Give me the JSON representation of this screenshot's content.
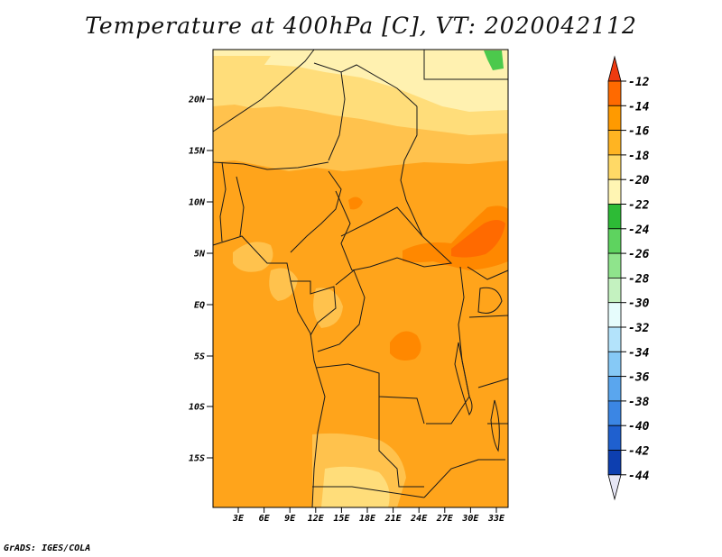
{
  "title": "Temperature at 400hPa [C], VT: 2020042112",
  "credit": "GrADS: IGES/COLA",
  "map": {
    "lat_labels": [
      "20N",
      "15N",
      "10N",
      "5N",
      "EQ",
      "5S",
      "10S",
      "15S"
    ],
    "lon_labels": [
      "3E",
      "6E",
      "9E",
      "12E",
      "15E",
      "18E",
      "21E",
      "24E",
      "27E",
      "30E",
      "33E"
    ]
  },
  "colorbar": {
    "labels": [
      "-12",
      "-14",
      "-16",
      "-18",
      "-20",
      "-22",
      "-24",
      "-26",
      "-28",
      "-30",
      "-32",
      "-34",
      "-36",
      "-38",
      "-40",
      "-42",
      "-44"
    ],
    "colors": [
      "#ee3a10",
      "#ff6a00",
      "#ff9a00",
      "#ffb422",
      "#ffd966",
      "#fff5b3",
      "#2dbb36",
      "#5ed35f",
      "#8fe48c",
      "#c4f2c0",
      "#e6fcfc",
      "#b3e3fb",
      "#86c9f6",
      "#5aa6ee",
      "#3b86e4",
      "#1f60cf",
      "#0d3fb0",
      "#03147a",
      "#e6e6f5"
    ]
  },
  "field_colors": {
    "very_cold": "#fff1b0",
    "cold": "#ffdd7a",
    "mid": "#ffc24d",
    "warm": "#ffa41b",
    "hot": "#ff8800",
    "hottest": "#ff6a00",
    "green": "#4cc94c"
  }
}
